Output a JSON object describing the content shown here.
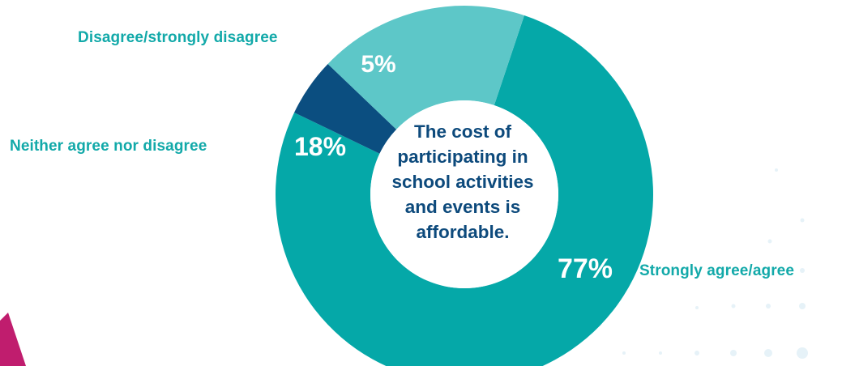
{
  "colors": {
    "accent_magenta": "#c01d6e",
    "teal_dark": "#05a8a8",
    "teal_light": "#5dc7c8",
    "navy": "#0b4e80",
    "label_teal": "#12a9a9",
    "center_text": "#0d4a7c",
    "dots": "#e6f2f8"
  },
  "chart_data": {
    "type": "pie",
    "donut": true,
    "center_text": "The cost of\nparticipating in\nschool activities\nand events is\naffordable.",
    "slices": [
      {
        "label": "Strongly agree/agree",
        "value": 77,
        "value_label": "77%",
        "color": "#05a8a8"
      },
      {
        "label": "Disagree/strongly disagree",
        "value": 5,
        "value_label": "5%",
        "color": "#0b4e80"
      },
      {
        "label": "Neither agree nor disagree",
        "value": 18,
        "value_label": "18%",
        "color": "#5dc7c8"
      }
    ]
  }
}
